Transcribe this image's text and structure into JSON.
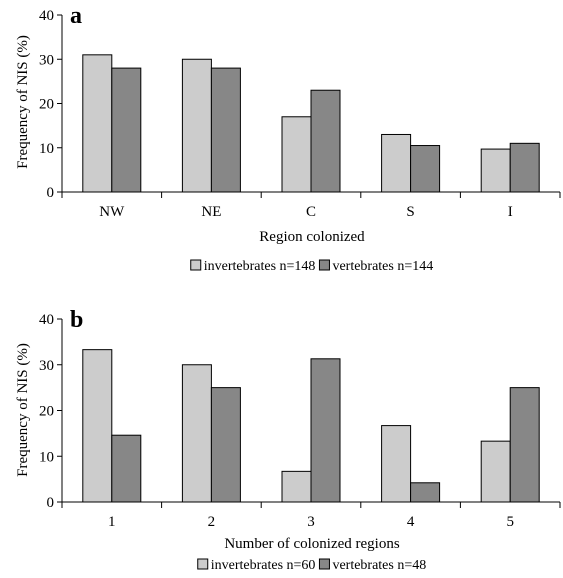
{
  "chart_data": [
    {
      "type": "bar",
      "panel_label": "a",
      "categories": [
        "NW",
        "NE",
        "C",
        "S",
        "I"
      ],
      "series": [
        {
          "name": "invertebrates n=148",
          "color": "#cccccc",
          "values": [
            31,
            30,
            17,
            13,
            9.7
          ]
        },
        {
          "name": "vertebrates n=144",
          "color": "#878787",
          "values": [
            28,
            28,
            23,
            10.5,
            11
          ]
        }
      ],
      "xlabel": "Region colonized",
      "ylabel": "Frequency of NIS (%)",
      "ylim": [
        0,
        40
      ],
      "yticks": [
        0,
        10,
        20,
        30,
        40
      ],
      "grid": false,
      "legend_position": "bottom-center"
    },
    {
      "type": "bar",
      "panel_label": "b",
      "categories": [
        "1",
        "2",
        "3",
        "4",
        "5"
      ],
      "series": [
        {
          "name": "invertebrates n=60",
          "color": "#cccccc",
          "values": [
            33.3,
            30,
            6.7,
            16.7,
            13.3
          ]
        },
        {
          "name": "vertebrates n=48",
          "color": "#878787",
          "values": [
            14.6,
            25,
            31.3,
            4.2,
            25
          ]
        }
      ],
      "xlabel": "Number of colonized regions",
      "ylabel": "Frequency of NIS (%)",
      "ylim": [
        0,
        40
      ],
      "yticks": [
        0,
        10,
        20,
        30,
        40
      ],
      "grid": false,
      "legend_position": "bottom-center"
    }
  ]
}
